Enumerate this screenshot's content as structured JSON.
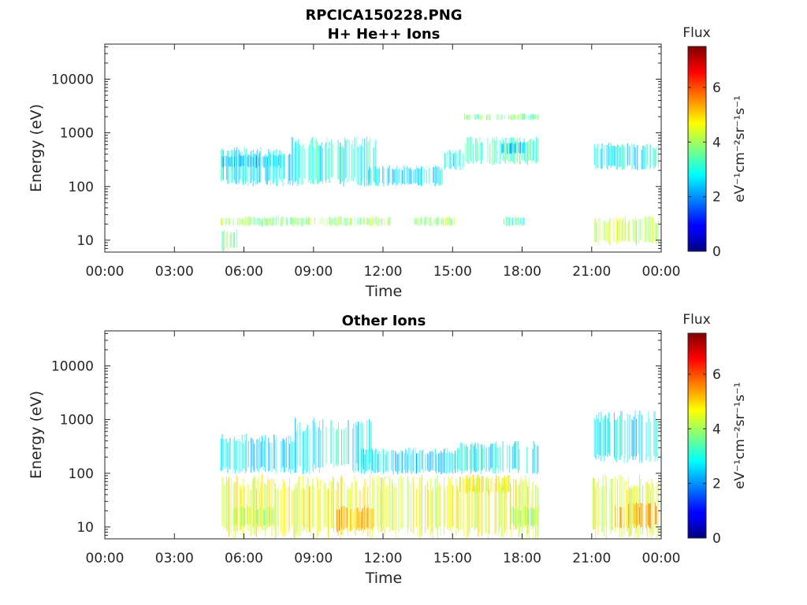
{
  "figure": {
    "filename": "RPCICA150228.PNG"
  },
  "chart_data": [
    {
      "type": "heatmap",
      "title": "H+ He++ Ions",
      "xlabel": "Time",
      "ylabel": "Energy (eV)",
      "y_scale": "log",
      "ylim": [
        6,
        45000
      ],
      "xlim_hours": [
        0,
        24
      ],
      "x_ticks": [
        "00:00",
        "03:00",
        "06:00",
        "09:00",
        "12:00",
        "15:00",
        "18:00",
        "21:00",
        "00:00"
      ],
      "x_tick_hours": [
        0,
        3,
        6,
        9,
        12,
        15,
        18,
        21,
        24
      ],
      "y_ticks": [
        "10",
        "100",
        "1000",
        "10000"
      ],
      "y_tick_values": [
        10,
        100,
        1000,
        10000
      ],
      "colorbar": {
        "label": "Flux",
        "units": "eV⁻¹cm⁻²sr⁻¹s⁻¹",
        "range": [
          0,
          7.5
        ],
        "ticks": [
          "0",
          "2",
          "4",
          "6"
        ],
        "tick_values": [
          0,
          2,
          4,
          6
        ],
        "colormap": "jet"
      },
      "grid": false,
      "regions": [
        {
          "t_start": 5.0,
          "t_end": 8.0,
          "e_low": 100,
          "e_high": 550,
          "flux": 2.7
        },
        {
          "t_start": 5.0,
          "t_end": 7.7,
          "e_low": 220,
          "e_high": 400,
          "flux": 2.4
        },
        {
          "t_start": 8.0,
          "t_end": 11.7,
          "e_low": 100,
          "e_high": 850,
          "flux": 2.9
        },
        {
          "t_start": 11.3,
          "t_end": 14.6,
          "e_low": 100,
          "e_high": 250,
          "flux": 2.6
        },
        {
          "t_start": 14.6,
          "t_end": 15.5,
          "e_low": 200,
          "e_high": 500,
          "flux": 2.7
        },
        {
          "t_start": 15.5,
          "t_end": 18.7,
          "e_low": 250,
          "e_high": 850,
          "flux": 3.2
        },
        {
          "t_start": 15.5,
          "t_end": 18.7,
          "e_low": 1700,
          "e_high": 2300,
          "flux": 3.6
        },
        {
          "t_start": 17.1,
          "t_end": 18.1,
          "e_low": 400,
          "e_high": 700,
          "flux": 2.3
        },
        {
          "t_start": 5.0,
          "t_end": 12.3,
          "e_low": 18,
          "e_high": 28,
          "flux": 3.9
        },
        {
          "t_start": 5.0,
          "t_end": 5.7,
          "e_low": 6,
          "e_high": 16,
          "flux": 3.7
        },
        {
          "t_start": 13.3,
          "t_end": 15.1,
          "e_low": 18,
          "e_high": 28,
          "flux": 3.9
        },
        {
          "t_start": 17.2,
          "t_end": 18.1,
          "e_low": 18,
          "e_high": 28,
          "flux": 3.3
        },
        {
          "t_start": 21.1,
          "t_end": 23.9,
          "e_low": 8,
          "e_high": 28,
          "flux": 4.1
        },
        {
          "t_start": 21.1,
          "t_end": 23.9,
          "e_low": 200,
          "e_high": 650,
          "flux": 2.8
        }
      ]
    },
    {
      "type": "heatmap",
      "title": "Other Ions",
      "xlabel": "Time",
      "ylabel": "Energy (eV)",
      "y_scale": "log",
      "ylim": [
        6,
        45000
      ],
      "xlim_hours": [
        0,
        24
      ],
      "x_ticks": [
        "00:00",
        "03:00",
        "06:00",
        "09:00",
        "12:00",
        "15:00",
        "18:00",
        "21:00",
        "00:00"
      ],
      "x_tick_hours": [
        0,
        3,
        6,
        9,
        12,
        15,
        18,
        21,
        24
      ],
      "y_ticks": [
        "10",
        "100",
        "1000",
        "10000"
      ],
      "y_tick_values": [
        10,
        100,
        1000,
        10000
      ],
      "colorbar": {
        "label": "Flux",
        "units": "eV⁻¹cm⁻²sr⁻¹s⁻¹",
        "range": [
          0,
          7.5
        ],
        "ticks": [
          "0",
          "2",
          "4",
          "6"
        ],
        "tick_values": [
          0,
          2,
          4,
          6
        ],
        "colormap": "jet"
      },
      "grid": false,
      "regions": [
        {
          "t_start": 5.0,
          "t_end": 18.7,
          "e_low": 6,
          "e_high": 95,
          "flux": 4.6
        },
        {
          "t_start": 5.5,
          "t_end": 7.3,
          "e_low": 10,
          "e_high": 25,
          "flux": 4.1
        },
        {
          "t_start": 10.0,
          "t_end": 11.6,
          "e_low": 8,
          "e_high": 25,
          "flux": 5.3
        },
        {
          "t_start": 15.3,
          "t_end": 17.5,
          "e_low": 40,
          "e_high": 95,
          "flux": 4.8
        },
        {
          "t_start": 17.5,
          "t_end": 18.7,
          "e_low": 10,
          "e_high": 25,
          "flux": 4.0
        },
        {
          "t_start": 5.0,
          "t_end": 8.2,
          "e_low": 95,
          "e_high": 550,
          "flux": 2.6
        },
        {
          "t_start": 8.2,
          "t_end": 11.5,
          "e_low": 95,
          "e_high": 1100,
          "flux": 2.8
        },
        {
          "t_start": 11.0,
          "t_end": 15.2,
          "e_low": 95,
          "e_high": 300,
          "flux": 2.5
        },
        {
          "t_start": 15.2,
          "t_end": 18.7,
          "e_low": 95,
          "e_high": 400,
          "flux": 2.7
        },
        {
          "t_start": 21.0,
          "t_end": 23.9,
          "e_low": 6,
          "e_high": 95,
          "flux": 4.5
        },
        {
          "t_start": 22.0,
          "t_end": 23.8,
          "e_low": 9,
          "e_high": 30,
          "flux": 5.4
        },
        {
          "t_start": 21.1,
          "t_end": 23.9,
          "e_low": 150,
          "e_high": 1500,
          "flux": 2.7
        }
      ]
    }
  ]
}
